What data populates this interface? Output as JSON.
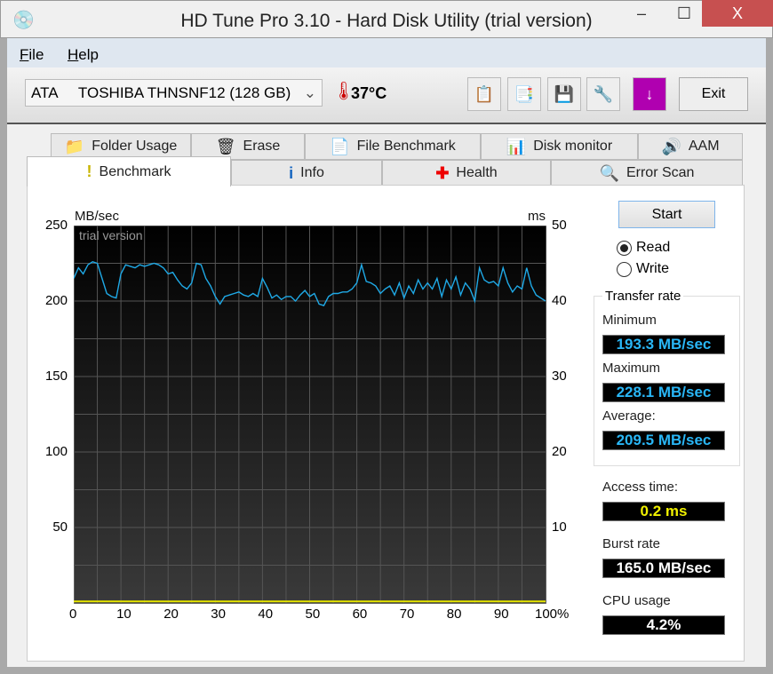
{
  "window": {
    "title": "HD Tune Pro 3.10 - Hard Disk Utility (trial version)",
    "icon": "hdtune-app-icon",
    "minimize": "–",
    "maximize": "☐",
    "close": "X"
  },
  "menu": [
    {
      "label": "File",
      "key": "F",
      "rest": "ile"
    },
    {
      "label": "Help",
      "key": "H",
      "rest": "elp"
    }
  ],
  "toolbar": {
    "drive": "ATA     TOSHIBA THNSNF12 (128 GB)",
    "temperature": "37°C",
    "buttons": [
      "copy-info-icon",
      "copy-screenshot-icon",
      "save-icon",
      "options-icon",
      "download-icon"
    ],
    "exit_label": "Exit"
  },
  "tabs_top": [
    {
      "label": "Folder Usage",
      "icon": "folder-icon"
    },
    {
      "label": "Erase",
      "icon": "trash-icon"
    },
    {
      "label": "File Benchmark",
      "icon": "file-benchmark-icon"
    },
    {
      "label": "Disk monitor",
      "icon": "disk-monitor-icon"
    },
    {
      "label": "AAM",
      "icon": "speaker-icon"
    }
  ],
  "tabs_bottom": [
    {
      "label": "Benchmark",
      "icon": "exclamation-icon",
      "active": true
    },
    {
      "label": "Info",
      "icon": "info-icon"
    },
    {
      "label": "Health",
      "icon": "health-cross-icon"
    },
    {
      "label": "Error Scan",
      "icon": "magnifier-icon"
    }
  ],
  "controls": {
    "start_label": "Start",
    "read_label": "Read",
    "write_label": "Write",
    "mode": "Read"
  },
  "results": {
    "transfer_rate_label": "Transfer rate",
    "minimum_label": "Minimum",
    "minimum": "193.3 MB/sec",
    "maximum_label": "Maximum",
    "maximum": "228.1 MB/sec",
    "average_label": "Average:",
    "average": "209.5 MB/sec",
    "access_label": "Access time:",
    "access": "0.2 ms",
    "burst_label": "Burst rate",
    "burst": "165.0 MB/sec",
    "cpu_label": "CPU usage",
    "cpu": "4.2%"
  },
  "colors": {
    "transfer": "#1fa9e6",
    "access": "#e8e800",
    "value_cyan": "#29b6f6",
    "value_yellow": "#f0f000",
    "close": "#c75050"
  },
  "chart_data": {
    "type": "line",
    "watermark": "trial version",
    "ylabel": "MB/sec",
    "y2label": "ms",
    "ylim": [
      0,
      250
    ],
    "y2lim": [
      0,
      50
    ],
    "xlim": [
      0,
      100
    ],
    "yticks": [
      "250",
      "200",
      "150",
      "100",
      "50"
    ],
    "ytick_values": [
      250,
      200,
      150,
      100,
      50
    ],
    "y2ticks": [
      "50",
      "40",
      "30",
      "20",
      "10"
    ],
    "y2tick_values": [
      50,
      40,
      30,
      20,
      10
    ],
    "xticks": [
      "0",
      "10",
      "20",
      "30",
      "40",
      "50",
      "60",
      "70",
      "80",
      "90",
      "100%"
    ],
    "xtick_values": [
      0,
      10,
      20,
      30,
      40,
      50,
      60,
      70,
      80,
      90,
      100
    ],
    "grid": true,
    "series": [
      {
        "name": "Transfer rate",
        "axis": "left",
        "color": "#1fa9e6",
        "values": [
          215,
          222,
          218,
          224,
          226,
          225,
          215,
          205,
          203,
          202,
          218,
          224,
          223,
          222,
          224,
          223,
          224,
          225,
          224,
          222,
          218,
          219,
          214,
          210,
          208,
          212,
          225,
          224,
          215,
          210,
          203,
          198,
          203,
          204,
          205,
          206,
          204,
          203,
          205,
          203,
          215,
          209,
          202,
          204,
          201,
          203,
          203,
          200,
          204,
          207,
          203,
          205,
          198,
          197,
          203,
          205,
          205,
          206,
          206,
          208,
          212,
          224,
          213,
          212,
          210,
          205,
          208,
          210,
          204,
          212,
          202,
          210,
          205,
          214,
          208,
          212,
          208,
          215,
          203,
          214,
          208,
          216,
          204,
          212,
          208,
          200,
          222,
          214,
          212,
          213,
          210,
          222,
          212,
          206,
          210,
          208,
          222,
          210,
          204,
          202,
          200
        ]
      },
      {
        "name": "Access time",
        "axis": "right",
        "color": "#e8e800",
        "values": [
          0.2,
          0.2,
          0.2,
          0.2,
          0.2,
          0.2,
          0.2,
          0.2,
          0.2,
          0.2,
          0.2
        ]
      }
    ]
  }
}
